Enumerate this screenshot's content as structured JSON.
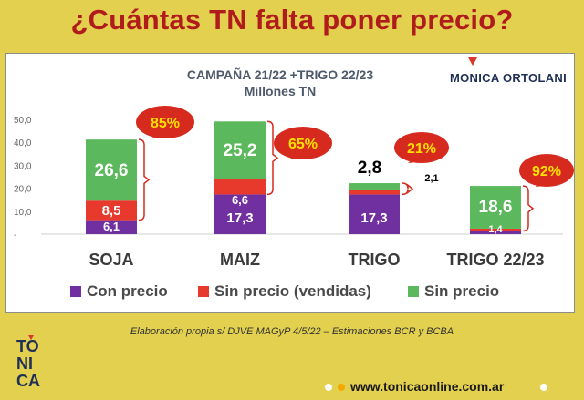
{
  "page": {
    "title": "¿Cuántas TN falta poner precio?",
    "brand": "MONICA ORTOLANI",
    "source": "Elaboración propia s/ DJVE MAGyP 4/5/22  – Estimaciones BCR y BCBA",
    "website": "www.tonicaonline.com.ar",
    "logo_text": "TO NI CA"
  },
  "colors": {
    "con_precio": "#7030a0",
    "vendidas": "#e8392d",
    "sin_precio": "#5cb85c",
    "callout": "#d62a1f",
    "callout_text": "#ffe000",
    "bracket": "#d62a1f"
  },
  "chart_data": {
    "type": "bar",
    "stacked": true,
    "title": "CAMPAÑA 21/22  +TRIGO 22/23",
    "subtitle": "Millones TN",
    "categories": [
      "SOJA",
      "MAIZ",
      "TRIGO",
      "TRIGO 22/23"
    ],
    "ylim": [
      0,
      50
    ],
    "yticks": [
      "50,0",
      "40,0",
      "30,0",
      "20,0",
      "10,0",
      "-"
    ],
    "ytick_values": [
      50,
      40,
      30,
      20,
      10,
      0
    ],
    "series": [
      {
        "name": "Con precio",
        "values": [
          6.1,
          17.3,
          17.3,
          1.4
        ],
        "labels": [
          "6,1",
          "17,3",
          "17,3",
          "1,4"
        ]
      },
      {
        "name": "Sin precio (vendidas)",
        "values": [
          8.5,
          6.6,
          2.1,
          1.0
        ],
        "labels": [
          "8,5",
          "6,6",
          "2,1",
          ""
        ]
      },
      {
        "name": "Sin precio",
        "values": [
          26.6,
          25.2,
          2.8,
          18.6
        ],
        "labels": [
          "26,6",
          "25,2",
          "2,8",
          "18,6"
        ]
      }
    ],
    "annotations": [
      "85%",
      "65%",
      "21%",
      "92%"
    ]
  }
}
